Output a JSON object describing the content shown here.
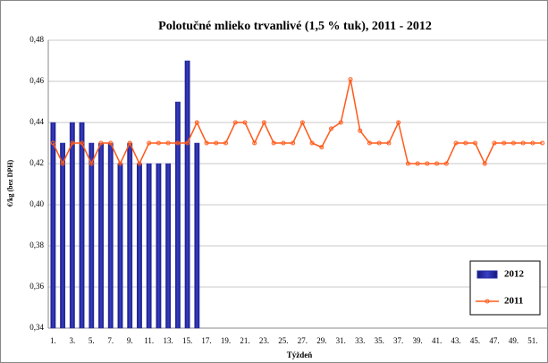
{
  "chart_data": {
    "type": "combo",
    "title": "Polotučné mlieko trvanlivé (1,5 % tuk), 2011 - 2012",
    "ylabel": "€/kg (bez DPH)",
    "xlabel": "Týždeň",
    "categories": [
      "1.",
      null,
      "3.",
      null,
      "5.",
      null,
      "7.",
      null,
      "9.",
      null,
      "11.",
      null,
      "13.",
      null,
      "15.",
      null,
      "17.",
      null,
      "19.",
      null,
      "21.",
      null,
      "23.",
      null,
      "25.",
      null,
      "27.",
      null,
      "29.",
      null,
      "31.",
      null,
      "33.",
      null,
      "35.",
      null,
      "37.",
      null,
      "39.",
      null,
      "41.",
      null,
      "43.",
      null,
      "45.",
      null,
      "47.",
      null,
      "49.",
      null,
      "51.",
      null
    ],
    "series": [
      {
        "name": "2012",
        "type": "bar",
        "color": "#2a2fa0",
        "values": [
          0.44,
          0.43,
          0.44,
          0.44,
          0.43,
          0.43,
          0.43,
          0.42,
          0.43,
          0.42,
          0.42,
          0.42,
          0.42,
          0.45,
          0.47,
          0.43,
          null,
          null,
          null,
          null,
          null,
          null,
          null,
          null,
          null,
          null,
          null,
          null,
          null,
          null,
          null,
          null,
          null,
          null,
          null,
          null,
          null,
          null,
          null,
          null,
          null,
          null,
          null,
          null,
          null,
          null,
          null,
          null,
          null,
          null,
          null,
          null
        ]
      },
      {
        "name": "2011",
        "type": "line",
        "color": "#ff5a1a",
        "values": [
          0.43,
          0.42,
          0.43,
          0.43,
          0.42,
          0.43,
          0.43,
          0.42,
          0.43,
          0.42,
          0.43,
          0.43,
          0.43,
          0.43,
          0.43,
          0.44,
          0.43,
          0.43,
          0.43,
          0.44,
          0.44,
          0.43,
          0.44,
          0.43,
          0.43,
          0.43,
          0.44,
          0.43,
          0.428,
          0.437,
          0.44,
          0.461,
          0.436,
          0.43,
          0.43,
          0.43,
          0.44,
          0.42,
          0.42,
          0.42,
          0.42,
          0.42,
          0.43,
          0.43,
          0.43,
          0.42,
          0.43,
          0.43,
          0.43,
          0.43,
          0.43,
          0.43
        ]
      }
    ],
    "ylim": [
      0.34,
      0.48
    ],
    "yticks": [
      {
        "value": 0.34,
        "label": "0,34"
      },
      {
        "value": 0.36,
        "label": "0,36"
      },
      {
        "value": 0.38,
        "label": "0,38"
      },
      {
        "value": 0.4,
        "label": "0,40"
      },
      {
        "value": 0.42,
        "label": "0,42"
      },
      {
        "value": 0.44,
        "label": "0,44"
      },
      {
        "value": 0.46,
        "label": "0,46"
      },
      {
        "value": 0.48,
        "label": "0,48"
      }
    ],
    "grid": true,
    "legend": "lower right"
  }
}
